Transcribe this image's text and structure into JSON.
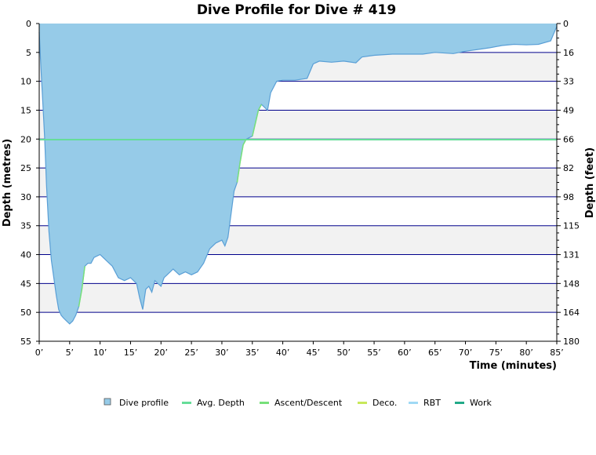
{
  "chart_data": {
    "type": "area",
    "title": "Dive Profile for Dive # 419",
    "xlabel": "Time (minutes)",
    "ylabel": "Depth (metres)",
    "ylabel_right": "Depth (feet)",
    "xlim": [
      0,
      85
    ],
    "ylim": [
      0,
      55
    ],
    "y_reversed": true,
    "grid": true,
    "x_ticks": [
      "0’",
      "5’",
      "10’",
      "15’",
      "20’",
      "25’",
      "30’",
      "35’",
      "40’",
      "45’",
      "50’",
      "55’",
      "60’",
      "65’",
      "70’",
      "75’",
      "80’",
      "85’"
    ],
    "y_ticks": [
      "0",
      "5",
      "10",
      "15",
      "20",
      "25",
      "30",
      "35",
      "40",
      "45",
      "50",
      "55"
    ],
    "y_ticks_right": [
      "0",
      "16",
      "33",
      "49",
      "66",
      "82",
      "98",
      "115",
      "131",
      "148",
      "164",
      "180"
    ],
    "average_depth": 20.1,
    "legend": [
      "Dive profile",
      "Avg. Depth",
      "Ascent/Descent",
      "Deco.",
      "RBT",
      "Work"
    ],
    "legend_position": "bottom",
    "colors": {
      "profile_fill": "#96cbe8",
      "profile_line": "#5a9fd6",
      "avg_depth": "#66dd99",
      "ascent_descent": "#77e07a",
      "deco": "#c8e85a",
      "rbt": "#9fd9f5",
      "work": "#22aa88",
      "grid": "#00008b",
      "band": "#f2f2f2"
    },
    "series": [
      {
        "name": "Dive profile",
        "time_minutes": [
          0,
          0.3,
          0.6,
          0.9,
          1.2,
          1.6,
          2.0,
          2.4,
          2.8,
          3.2,
          3.6,
          4.0,
          4.5,
          5.0,
          5.5,
          6.0,
          6.5,
          7.0,
          7.5,
          8.0,
          8.5,
          9.0,
          10.0,
          11.0,
          12.0,
          13.0,
          14.0,
          15.0,
          16.0,
          16.5,
          17.0,
          17.5,
          18.0,
          18.5,
          19.0,
          19.5,
          20.0,
          20.5,
          21.0,
          22.0,
          23.0,
          24.0,
          25.0,
          26.0,
          27.0,
          28.0,
          29.0,
          30.0,
          30.5,
          31.0,
          32.0,
          32.5,
          33.0,
          33.5,
          34.0,
          35.0,
          36.0,
          36.5,
          37.0,
          37.5,
          38.0,
          39.0,
          40.0,
          42.0,
          44.0,
          45.0,
          46.0,
          48.0,
          50.0,
          52.0,
          53.0,
          55.0,
          58.0,
          60.0,
          63.0,
          65.0,
          68.0,
          70.0,
          72.0,
          74.0,
          76.0,
          78.0,
          80.0,
          82.0,
          84.0,
          85.0
        ],
        "depth_m": [
          1.5,
          8.0,
          14.0,
          20.0,
          28.0,
          36.0,
          41.0,
          44.0,
          47.0,
          49.5,
          50.5,
          51.0,
          51.5,
          52.0,
          51.5,
          50.5,
          49.0,
          46.0,
          42.0,
          41.5,
          41.5,
          40.5,
          40.0,
          41.0,
          42.0,
          44.0,
          44.5,
          44.0,
          45.0,
          47.5,
          49.5,
          46.0,
          45.5,
          46.5,
          44.5,
          45.0,
          45.5,
          44.0,
          43.5,
          42.5,
          43.5,
          43.0,
          43.5,
          43.0,
          41.5,
          39.0,
          38.0,
          37.5,
          38.5,
          37.0,
          29.0,
          27.5,
          24.0,
          21.0,
          20.0,
          19.5,
          15.0,
          14.0,
          14.5,
          15.0,
          12.0,
          10.0,
          9.8,
          9.8,
          9.5,
          7.0,
          6.5,
          6.7,
          6.5,
          6.8,
          5.8,
          5.5,
          5.3,
          5.3,
          5.3,
          5.0,
          5.2,
          4.8,
          4.5,
          4.2,
          3.8,
          3.6,
          3.7,
          3.6,
          3.0,
          0.5
        ]
      }
    ]
  }
}
